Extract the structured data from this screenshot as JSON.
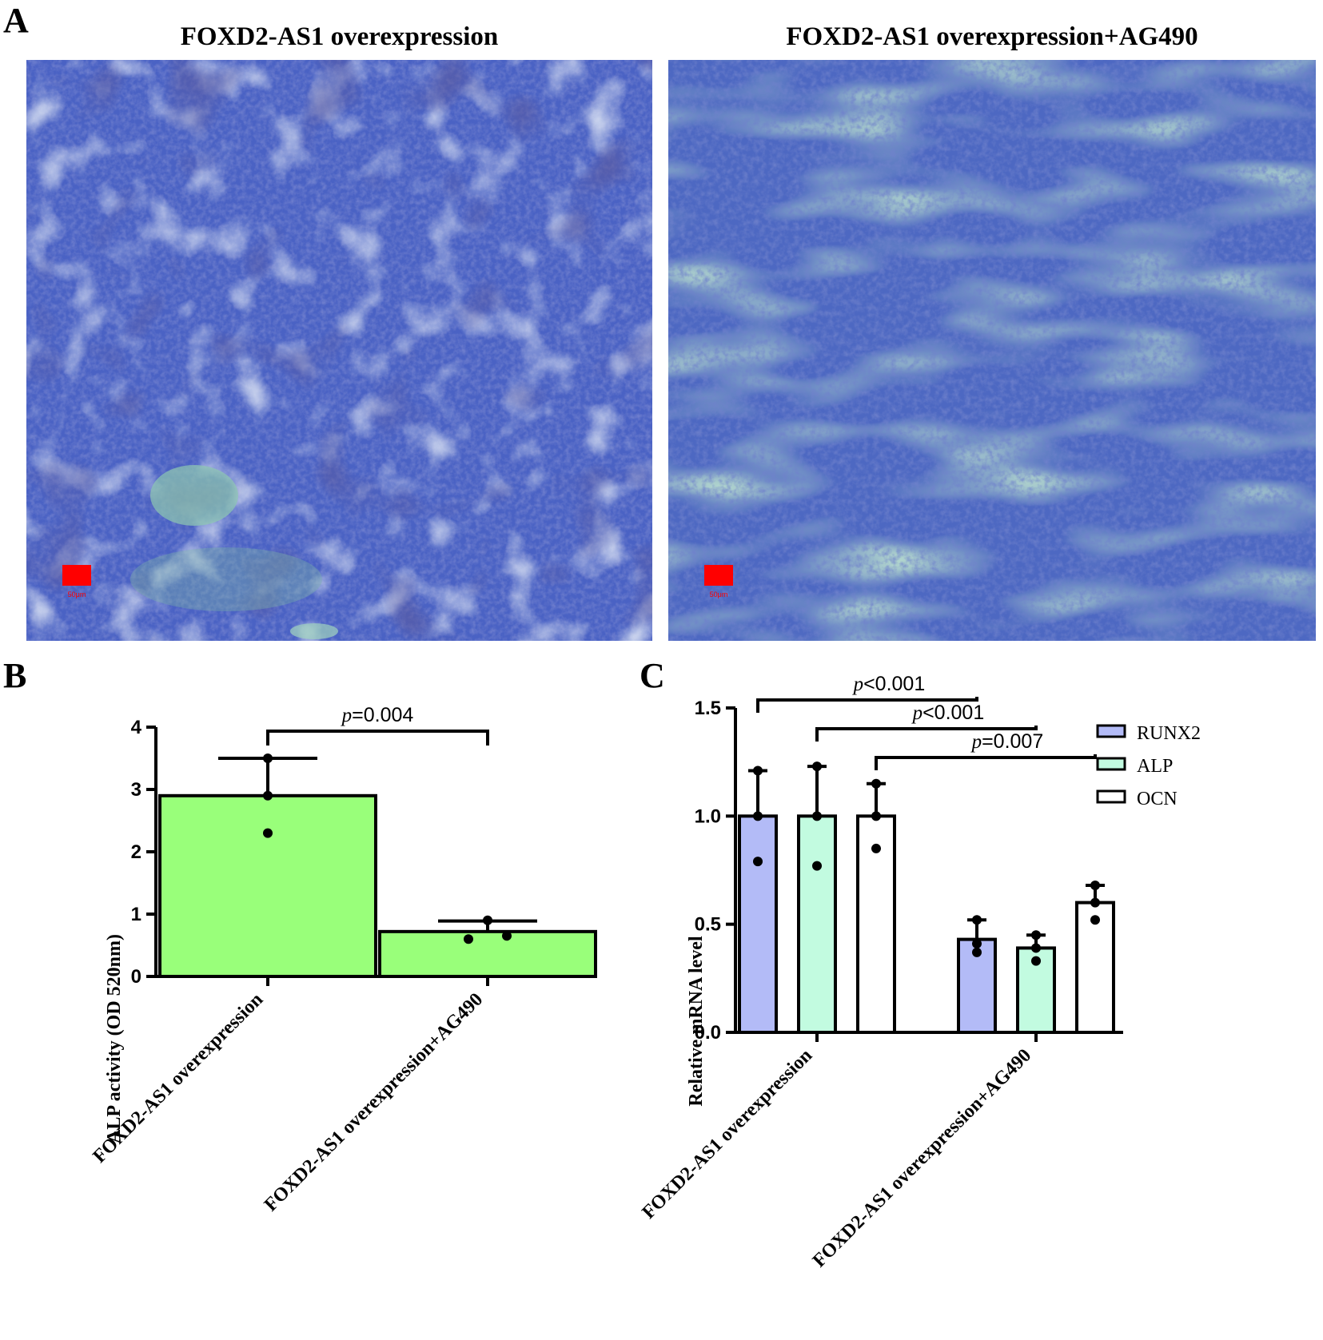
{
  "panels": {
    "a_label": "A",
    "b_label": "B",
    "c_label": "C"
  },
  "micrographs": [
    {
      "title": "FOXD2-AS1 overexpression",
      "scale_text": "50μm"
    },
    {
      "title": "FOXD2-AS1 overexpression+AG490",
      "scale_text": "50μm"
    }
  ],
  "colors": {
    "stain_blue": "#2f3fae",
    "stain_green": "#7fc0a6",
    "scale_bar": "#ff0000",
    "bar_b": "#99ff7a",
    "runx2": "#b3bbf7",
    "alp": "#c2fbe0",
    "ocn": "#ffffff"
  },
  "chart_data": [
    {
      "type": "bar",
      "panel": "B",
      "ylabel": "ALP activity (OD 520nm)",
      "xlabel": "",
      "ylim": [
        0,
        4
      ],
      "yticks": [
        "0",
        "1",
        "2",
        "3",
        "4"
      ],
      "categories": [
        "FOXD2-AS1 overexpression",
        "FOXD2-AS1 overexpression+AG490"
      ],
      "values": [
        2.9,
        0.72
      ],
      "error_upper": [
        3.5,
        0.89
      ],
      "points": [
        [
          3.5,
          2.9,
          2.3
        ],
        [
          0.9,
          0.6,
          0.65
        ]
      ],
      "annotations": [
        {
          "p_symbol": "p",
          "p_value": "=0.004",
          "between": [
            0,
            1
          ]
        }
      ]
    },
    {
      "type": "bar",
      "panel": "C",
      "ylabel": "Relative mRNA level",
      "xlabel": "",
      "ylim": [
        0,
        1.5
      ],
      "yticks": [
        "0.0",
        "0.5",
        "1.0",
        "1.5"
      ],
      "categories": [
        "FOXD2-AS1 overexpression",
        "FOXD2-AS1 overexpression+AG490"
      ],
      "series": [
        {
          "name": "RUNX2",
          "values": [
            1.0,
            0.43
          ],
          "error_upper": [
            1.21,
            0.52
          ],
          "points": [
            [
              1.21,
              1.0,
              0.79
            ],
            [
              0.52,
              0.41,
              0.37
            ]
          ]
        },
        {
          "name": "ALP",
          "values": [
            1.0,
            0.39
          ],
          "error_upper": [
            1.23,
            0.45
          ],
          "points": [
            [
              1.23,
              1.0,
              0.77
            ],
            [
              0.45,
              0.39,
              0.33
            ]
          ]
        },
        {
          "name": "OCN",
          "values": [
            1.0,
            0.6
          ],
          "error_upper": [
            1.15,
            0.68
          ],
          "points": [
            [
              1.15,
              1.0,
              0.85
            ],
            [
              0.68,
              0.6,
              0.52
            ]
          ]
        }
      ],
      "legend": "right",
      "annotations": [
        {
          "p_symbol": "p",
          "p_value": "<0.001",
          "series": "RUNX2"
        },
        {
          "p_symbol": "p",
          "p_value": "<0.001",
          "series": "ALP"
        },
        {
          "p_symbol": "p",
          "p_value": "=0.007",
          "series": "OCN"
        }
      ]
    }
  ]
}
